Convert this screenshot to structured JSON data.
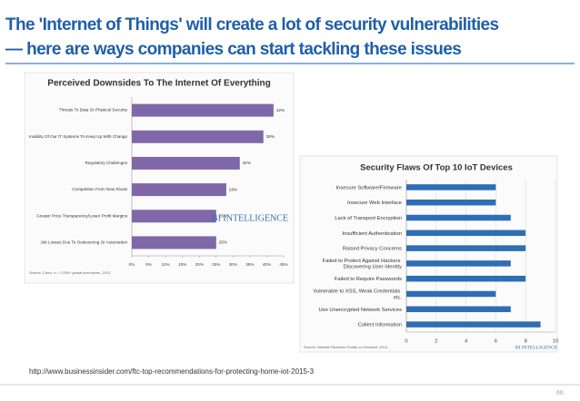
{
  "title": [
    "The 'Internet of Things' will create a lot of security vulnerabilities",
    "— here are ways companies can start tackling these issues"
  ],
  "url": "http://www.businessinsider.com/ftc-top-recommendations-for-protecting-home-iot-2015-3",
  "page_number": "66",
  "chart_data": [
    {
      "type": "hbar",
      "title": "Perceived Downsides To The Internet Of Everything",
      "categories": [
        "Threats To Data Or Physical Security",
        "Inability Of Our IT Systems To Keep Up With Change",
        "Regulatory Challenges",
        "Competition From New Rivals",
        "Greater Price Transparency/Lower Profit Margins",
        "Job Losses Due To Outsourcing Or Automation"
      ],
      "values": [
        42,
        39,
        32,
        28,
        25,
        25
      ],
      "value_labels": [
        "42%",
        "39%",
        "32%",
        "28%",
        "25%",
        "25%"
      ],
      "color": "#8067a8",
      "xlim": [
        0,
        45
      ],
      "xticks": [
        {
          "value": 0,
          "label": "0%"
        },
        {
          "value": 5,
          "label": "5%"
        },
        {
          "value": 10,
          "label": "10%"
        },
        {
          "value": 15,
          "label": "15%"
        },
        {
          "value": 20,
          "label": "20%"
        },
        {
          "value": 25,
          "label": "25%"
        },
        {
          "value": 30,
          "label": "30%"
        },
        {
          "value": 35,
          "label": "35%"
        },
        {
          "value": 40,
          "label": "40%"
        },
        {
          "value": 45,
          "label": "45%"
        }
      ],
      "grid": false,
      "source": "Source: Cisco, n = 7,000+ global executives, 2013",
      "annotation": "BI INTELLIGENCE"
    },
    {
      "type": "hbar",
      "title": "Security Flaws Of Top 10 IoT Devices",
      "categories": [
        "Insecure Software/Firmware",
        "Insecure Web Interface",
        "Lack of Transport Encryption",
        "Insufficient Authentication",
        "Raised Privacy Concerns",
        "Failed to Protect Against Hackers Discovering User Identity",
        "Failed to Require Passwords",
        "Vulnerable to XSS, Weak Credentials etc.",
        "Use Unencrypted Network Services",
        "Collect Information"
      ],
      "values": [
        6,
        6,
        7,
        8,
        8,
        7,
        8,
        6,
        7,
        9
      ],
      "color": "#2e6eb5",
      "xlim": [
        0,
        10
      ],
      "xticks": [
        0,
        2,
        4,
        6,
        8,
        10
      ],
      "grid": true,
      "source": "Source: Hewlett Packard's Fortify on Demand, 2014",
      "annotation": "BI INTELLIGENCE"
    }
  ]
}
